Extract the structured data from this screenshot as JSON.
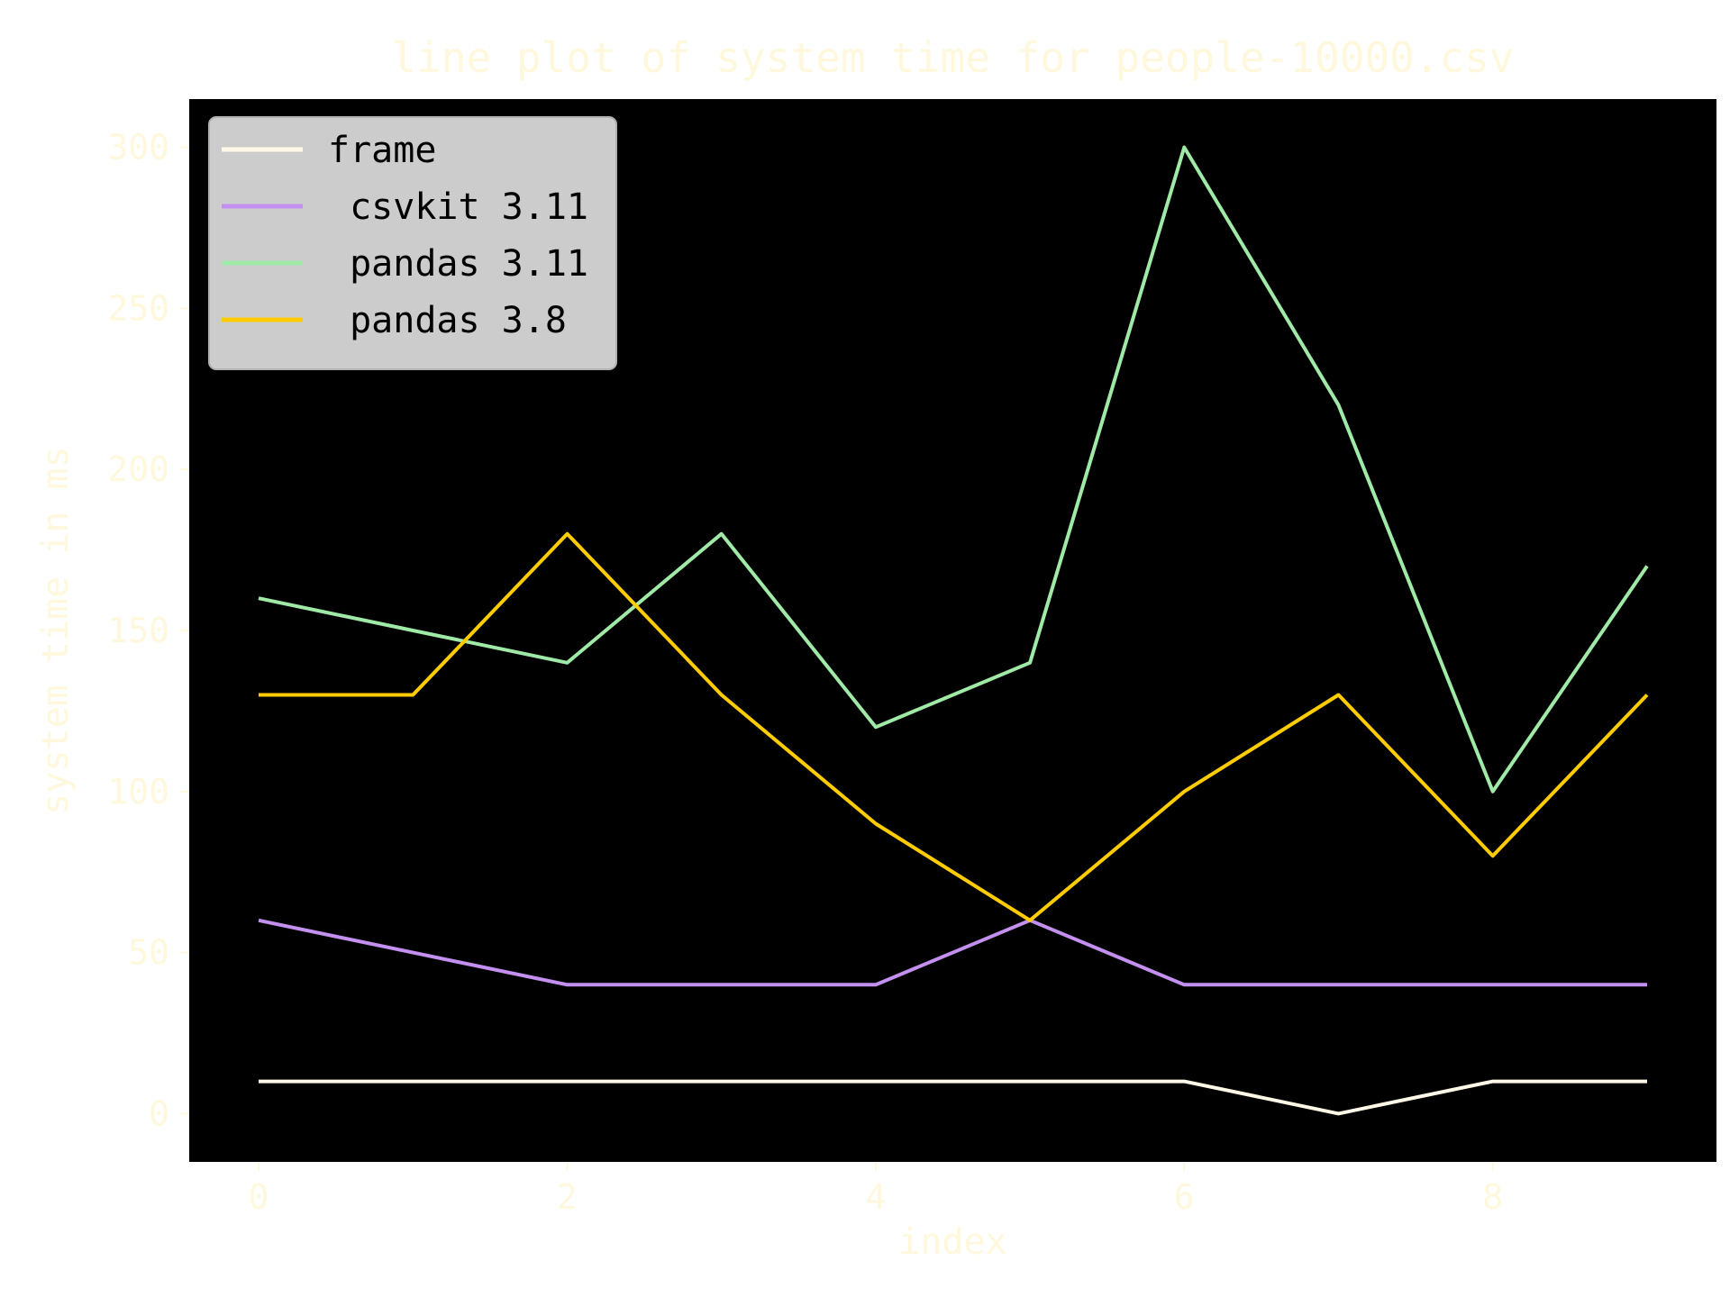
{
  "chart_data": {
    "type": "line",
    "title": "line plot of system time for people-10000.csv",
    "xlabel": "index",
    "ylabel": "system time in ms",
    "x": [
      0,
      1,
      2,
      3,
      4,
      5,
      6,
      7,
      8,
      9
    ],
    "xlim": [
      -0.45,
      9.45
    ],
    "ylim": [
      -15,
      315
    ],
    "xticks": [
      0,
      2,
      4,
      6,
      8
    ],
    "yticks": [
      0,
      50,
      100,
      150,
      200,
      250,
      300
    ],
    "grid": false,
    "legend_position": "top-left",
    "colors": {
      "plot_background": "#000000",
      "text": "#fff8dc",
      "legend_background": "#cccccc",
      "legend_text": "#000000"
    },
    "series": [
      {
        "name": "frame",
        "color": "#fff8e7",
        "values": [
          10,
          10,
          10,
          10,
          10,
          10,
          10,
          0,
          10,
          10
        ]
      },
      {
        "name": " csvkit 3.11",
        "color": "#c490f0",
        "values": [
          60,
          50,
          40,
          40,
          40,
          60,
          40,
          40,
          40,
          40
        ]
      },
      {
        "name": " pandas 3.11",
        "color": "#a0eaa8",
        "values": [
          160,
          150,
          140,
          180,
          120,
          140,
          300,
          220,
          100,
          170
        ]
      },
      {
        "name": " pandas 3.8",
        "color": "#ffcc00",
        "values": [
          130,
          130,
          180,
          130,
          90,
          60,
          100,
          130,
          80,
          130
        ]
      }
    ]
  }
}
